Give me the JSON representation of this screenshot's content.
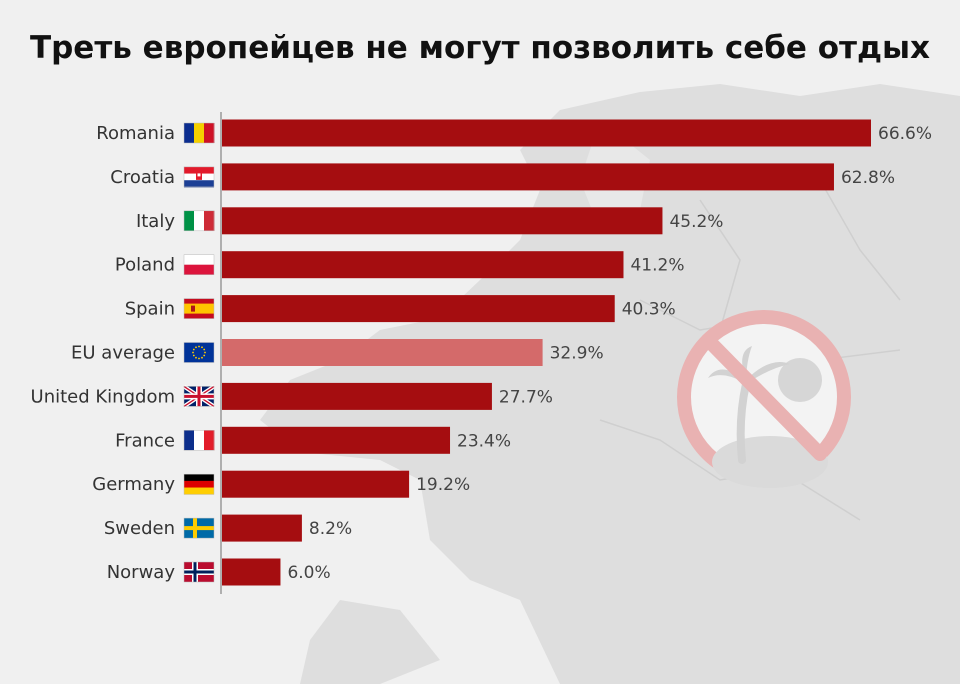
{
  "title": "Треть европейцев не могут позволить себе отдых",
  "colors": {
    "bar": "#a50d10",
    "highlight": "#d46a6a",
    "sign": "#e9b2b2",
    "map": "#dcdcdc"
  },
  "chart_data": {
    "type": "bar",
    "orientation": "horizontal",
    "title": "Треть европейцев не могут позволить себе отдых",
    "unit": "%",
    "xlim": [
      0,
      66.6
    ],
    "categories": [
      "Romania",
      "Croatia",
      "Italy",
      "Poland",
      "Spain",
      "EU average",
      "United Kingdom",
      "France",
      "Germany",
      "Sweden",
      "Norway"
    ],
    "values": [
      66.6,
      62.8,
      45.2,
      41.2,
      40.3,
      32.9,
      27.7,
      23.4,
      19.2,
      8.2,
      6.0
    ],
    "value_labels": [
      "66.6%",
      "62.8%",
      "45.2%",
      "41.2%",
      "40.3%",
      "32.9%",
      "27.7%",
      "23.4%",
      "19.2%",
      "8.2%",
      "6.0%"
    ],
    "highlighted": [
      "EU average"
    ],
    "flags": [
      "romania",
      "croatia",
      "italy",
      "poland",
      "spain",
      "eu",
      "uk",
      "france",
      "germany",
      "sweden",
      "norway"
    ]
  }
}
